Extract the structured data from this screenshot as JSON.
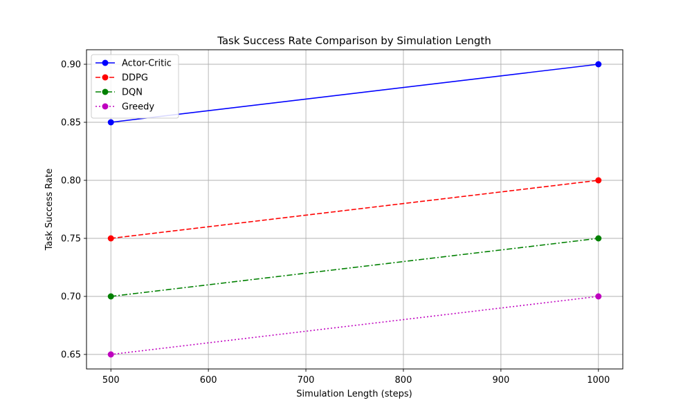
{
  "chart_data": {
    "type": "line",
    "title": "Task Success Rate Comparison by Simulation Length",
    "xlabel": "Simulation Length (steps)",
    "ylabel": "Task Success Rate",
    "x": [
      500,
      1000
    ],
    "xlim": [
      475,
      1025
    ],
    "ylim": [
      0.6375,
      0.9125
    ],
    "xticks": [
      500,
      600,
      700,
      800,
      900,
      1000
    ],
    "xtick_labels": [
      "500",
      "600",
      "700",
      "800",
      "900",
      "1000"
    ],
    "yticks": [
      0.65,
      0.7,
      0.75,
      0.8,
      0.85,
      0.9
    ],
    "ytick_labels": [
      "0.65",
      "0.70",
      "0.75",
      "0.80",
      "0.85",
      "0.90"
    ],
    "grid": true,
    "legend_position": "top-left",
    "series": [
      {
        "name": "Actor-Critic",
        "values": [
          0.85,
          0.9
        ],
        "color": "#0000ff",
        "line_style": "solid",
        "marker": "circle"
      },
      {
        "name": "DDPG",
        "values": [
          0.75,
          0.8
        ],
        "color": "#ff0000",
        "line_style": "dashed",
        "marker": "circle"
      },
      {
        "name": "DQN",
        "values": [
          0.7,
          0.75
        ],
        "color": "#008000",
        "line_style": "dashdot",
        "marker": "circle"
      },
      {
        "name": "Greedy",
        "values": [
          0.65,
          0.7
        ],
        "color": "#bf00bf",
        "line_style": "dotted",
        "marker": "circle"
      }
    ]
  }
}
